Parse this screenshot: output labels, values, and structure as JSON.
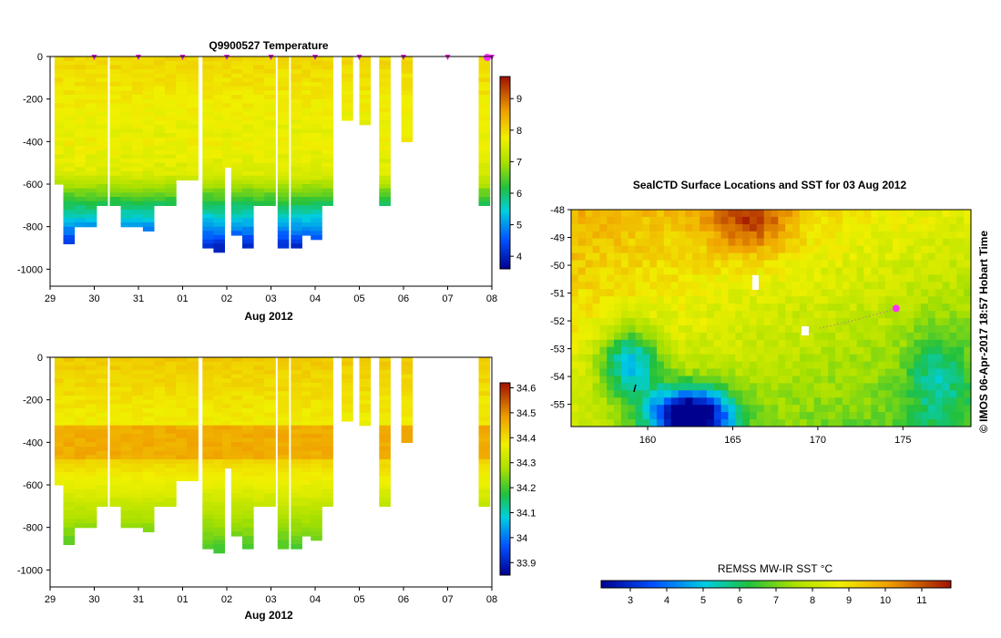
{
  "chart_data": [
    {
      "id": "temperature-section",
      "type": "heatmap",
      "title": "Q9900527  Temperature",
      "xlabel": "Aug 2012",
      "ylabel": "",
      "x_ticks": [
        "29",
        "30",
        "31",
        "01",
        "02",
        "03",
        "04",
        "05",
        "06",
        "07",
        "08"
      ],
      "x_range": [
        0,
        10
      ],
      "y_ticks": [
        "0",
        "-200",
        "-400",
        "-600",
        "-800",
        "-1000"
      ],
      "y_tick_values": [
        0,
        -200,
        -400,
        -600,
        -800,
        -1000
      ],
      "ylim": [
        -1080,
        0
      ],
      "colorbar": {
        "ticks": [
          "4",
          "5",
          "6",
          "7",
          "8",
          "9"
        ],
        "tick_values": [
          4,
          5,
          6,
          7,
          8,
          9
        ],
        "range": [
          3.6,
          9.7
        ]
      },
      "profiles": [
        {
          "t": 0.1,
          "depth": 600
        },
        {
          "t": 0.3,
          "depth": 870
        },
        {
          "t": 0.55,
          "depth": 800
        },
        {
          "t": 0.8,
          "depth": 790
        },
        {
          "t": 1.05,
          "depth": 700
        },
        {
          "t": 1.35,
          "depth": 700
        },
        {
          "t": 1.6,
          "depth": 790
        },
        {
          "t": 1.85,
          "depth": 800
        },
        {
          "t": 2.1,
          "depth": 810
        },
        {
          "t": 2.35,
          "depth": 700
        },
        {
          "t": 2.6,
          "depth": 700
        },
        {
          "t": 2.85,
          "depth": 580
        },
        {
          "t": 3.1,
          "depth": 580
        },
        {
          "t": 3.45,
          "depth": 900
        },
        {
          "t": 3.7,
          "depth": 910
        },
        {
          "t": 3.9,
          "depth": 520
        },
        {
          "t": 4.1,
          "depth": 830
        },
        {
          "t": 4.35,
          "depth": 890
        },
        {
          "t": 4.6,
          "depth": 700
        },
        {
          "t": 4.85,
          "depth": 700
        },
        {
          "t": 5.15,
          "depth": 900
        },
        {
          "t": 5.45,
          "depth": 900
        },
        {
          "t": 5.7,
          "depth": 830
        },
        {
          "t": 5.9,
          "depth": 860
        },
        {
          "t": 6.15,
          "depth": 700
        },
        {
          "t": 6.6,
          "depth": 300
        },
        {
          "t": 7.0,
          "depth": 310
        },
        {
          "t": 7.45,
          "depth": 700
        },
        {
          "t": 7.95,
          "depth": 400
        },
        {
          "t": 9.7,
          "depth": 700
        }
      ],
      "surface_markers": [
        1,
        2,
        3,
        4,
        5,
        6,
        7,
        8,
        9,
        10
      ]
    },
    {
      "id": "salinity-section",
      "type": "heatmap",
      "title": "",
      "xlabel": "Aug 2012",
      "ylabel": "",
      "x_ticks": [
        "29",
        "30",
        "31",
        "01",
        "02",
        "03",
        "04",
        "05",
        "06",
        "07",
        "08"
      ],
      "x_range": [
        0,
        10
      ],
      "y_ticks": [
        "0",
        "-200",
        "-400",
        "-600",
        "-800",
        "-1000"
      ],
      "y_tick_values": [
        0,
        -200,
        -400,
        -600,
        -800,
        -1000
      ],
      "ylim": [
        -1080,
        0
      ],
      "colorbar": {
        "ticks": [
          "33.9",
          "34",
          "34.1",
          "34.2",
          "34.3",
          "34.4",
          "34.5",
          "34.6"
        ],
        "tick_values": [
          33.9,
          34.0,
          34.1,
          34.2,
          34.3,
          34.4,
          34.5,
          34.6
        ],
        "range": [
          33.85,
          34.62
        ]
      },
      "profiles": "same-as-temperature"
    },
    {
      "id": "sst-map",
      "type": "heatmap",
      "title": "SealCTD Surface Locations and SST for 03 Aug 2012",
      "x_ticks": [
        "160",
        "165",
        "170",
        "175"
      ],
      "x_tick_values": [
        160,
        165,
        170,
        175
      ],
      "xlim": [
        155.5,
        179
      ],
      "y_ticks": [
        "-48",
        "-49",
        "-50",
        "-51",
        "-52",
        "-53",
        "-54",
        "-55"
      ],
      "y_tick_values": [
        -48,
        -49,
        -50,
        -51,
        -52,
        -53,
        -54,
        -55
      ],
      "ylim": [
        -55.8,
        -48
      ],
      "colorbar": {
        "label": "REMSS MW-IR SST °C",
        "ticks": [
          "3",
          "4",
          "5",
          "6",
          "7",
          "8",
          "9",
          "10",
          "11"
        ],
        "tick_values": [
          3,
          4,
          5,
          6,
          7,
          8,
          9,
          10,
          11
        ],
        "range": [
          2.2,
          11.8
        ]
      },
      "seal_position": {
        "lon": 174.6,
        "lat": -51.55
      }
    }
  ],
  "credit": "© IMOS 06-Apr-2017 18:57 Hobart Time"
}
